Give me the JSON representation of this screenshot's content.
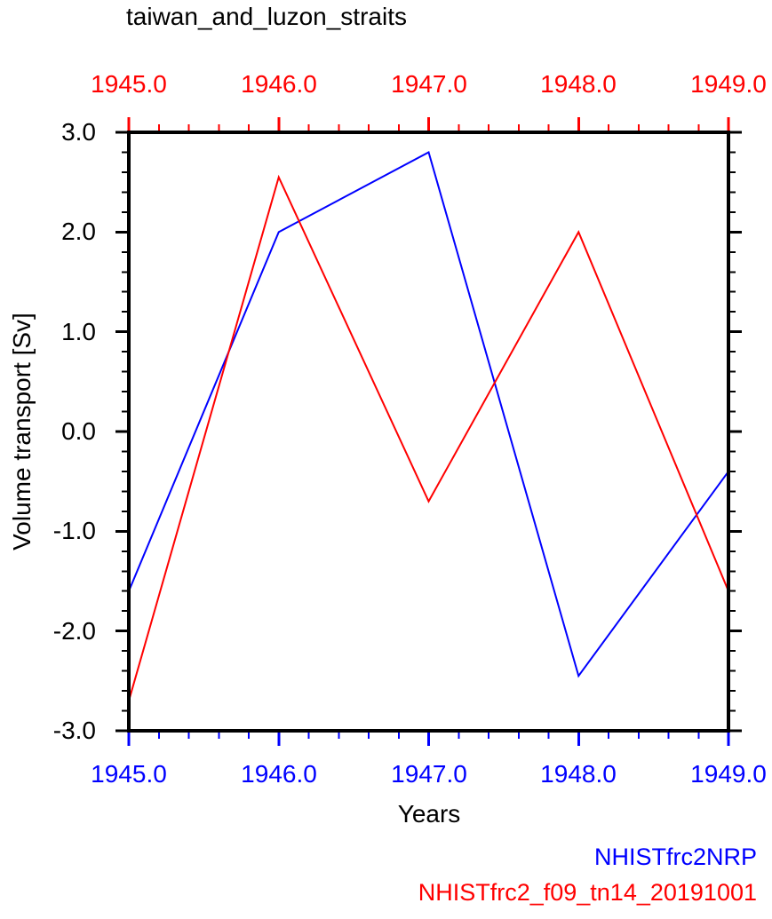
{
  "title": "taiwan_and_luzon_straits",
  "top_axis": {
    "color": "#ff0000",
    "labels": [
      "1945.0",
      "1946.0",
      "1947.0",
      "1948.0",
      "1949.0"
    ]
  },
  "bottom_axis": {
    "color": "#0000ff",
    "title": "Years",
    "labels": [
      "1945.0",
      "1946.0",
      "1947.0",
      "1948.0",
      "1949.0"
    ]
  },
  "left_axis": {
    "color": "#000000",
    "title": "Volume transport [Sv]",
    "labels": [
      "3.0",
      "2.0",
      "1.0",
      "0.0",
      "-1.0",
      "-2.0",
      "-3.0"
    ]
  },
  "right_axis": {
    "color": "#000000"
  },
  "legend": {
    "items": [
      {
        "label": "NHISTfrc2NRP",
        "color": "#0000ff"
      },
      {
        "label": "NHISTfrc2_f09_tn14_20191001",
        "color": "#ff0000"
      }
    ]
  },
  "chart_data": {
    "type": "line",
    "title": "taiwan_and_luzon_straits",
    "xlabel": "Years",
    "ylabel": "Volume transport [Sv]",
    "x": [
      1945.0,
      1946.0,
      1947.0,
      1948.0,
      1949.0
    ],
    "xlim": [
      1945.0,
      1949.0
    ],
    "ylim": [
      -3.0,
      3.0
    ],
    "x_major_step": 1.0,
    "x_minor_step": 0.2,
    "y_major_step": 1.0,
    "y_minor_step": 0.2,
    "grid": false,
    "legend_position": "bottom-right",
    "series": [
      {
        "name": "NHISTfrc2NRP",
        "color": "#0000ff",
        "values": [
          -1.6,
          2.0,
          2.8,
          -2.45,
          -0.4
        ]
      },
      {
        "name": "NHISTfrc2_f09_tn14_20191001",
        "color": "#ff0000",
        "values": [
          -2.7,
          2.55,
          -0.7,
          2.0,
          -1.6
        ]
      }
    ]
  }
}
